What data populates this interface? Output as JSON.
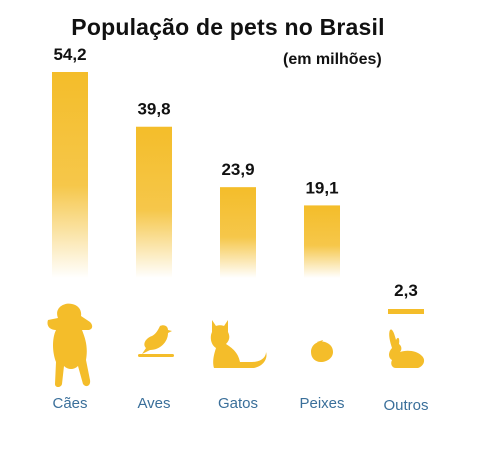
{
  "title": "População de pets no Brasil",
  "subtitle": "(em milhões)",
  "colors": {
    "bar": "#f4bd2a",
    "icon": "#f4bd2a",
    "category_text": "#3a6f9a",
    "value_text": "#111111"
  },
  "chart_data": {
    "type": "bar",
    "title": "População de pets no Brasil",
    "subtitle": "(em milhões)",
    "categories": [
      "Cães",
      "Aves",
      "Gatos",
      "Peixes",
      "Outros"
    ],
    "values": [
      54.2,
      39.8,
      23.9,
      19.1,
      2.3
    ],
    "value_labels": [
      "54,2",
      "39,8",
      "23,9",
      "19,1",
      "2,3"
    ],
    "icons": [
      "dog-icon",
      "bird-icon",
      "cat-icon",
      "fish-icon",
      "rabbit-icon"
    ],
    "xlabel": "",
    "ylabel": "",
    "ylim": [
      0,
      54.2
    ],
    "grid": false,
    "legend": "none"
  }
}
